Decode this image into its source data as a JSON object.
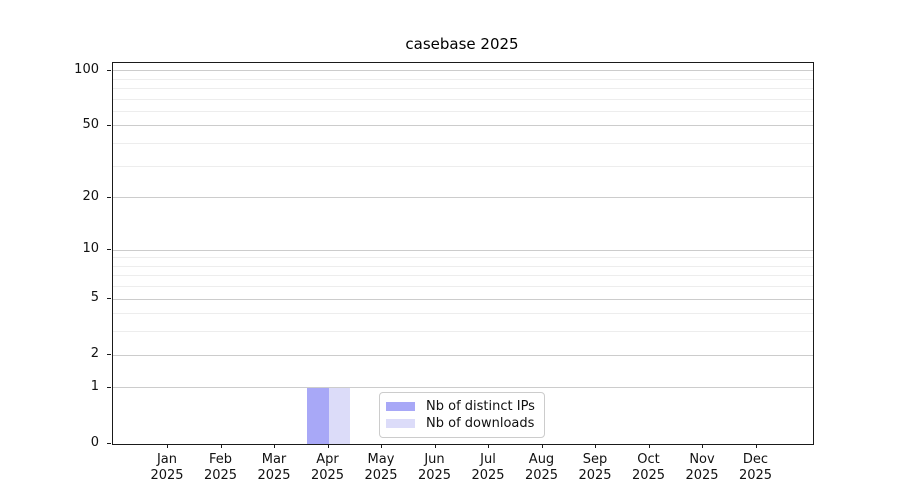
{
  "title": "casebase 2025",
  "chart_data": {
    "type": "bar",
    "title": "casebase 2025",
    "categories": [
      "Jan 2025",
      "Feb 2025",
      "Mar 2025",
      "Apr 2025",
      "May 2025",
      "Jun 2025",
      "Jul 2025",
      "Aug 2025",
      "Sep 2025",
      "Oct 2025",
      "Nov 2025",
      "Dec 2025"
    ],
    "series": [
      {
        "name": "Nb of distinct IPs",
        "color": "#a8a8f7",
        "values": [
          0,
          0,
          0,
          1,
          0,
          0,
          0,
          0,
          0,
          0,
          0,
          0
        ]
      },
      {
        "name": "Nb of downloads",
        "color": "#dcdcf9",
        "values": [
          0,
          0,
          0,
          1,
          0,
          0,
          0,
          0,
          0,
          0,
          0,
          0
        ]
      }
    ],
    "xlabel": "",
    "ylabel": "",
    "y_scale": "log1p",
    "y_ticks": [
      0,
      1,
      2,
      5,
      10,
      20,
      50,
      100
    ],
    "y_minor_ticks": [
      3,
      4,
      6,
      7,
      8,
      9,
      30,
      40,
      60,
      70,
      80,
      90
    ],
    "y_max": 110,
    "grid": "horizontal",
    "legend_position": "lower center"
  },
  "colors": {
    "major_grid": "#cccccc",
    "minor_grid": "#ededed",
    "axis": "#1a1a1a",
    "background": "#ffffff"
  }
}
